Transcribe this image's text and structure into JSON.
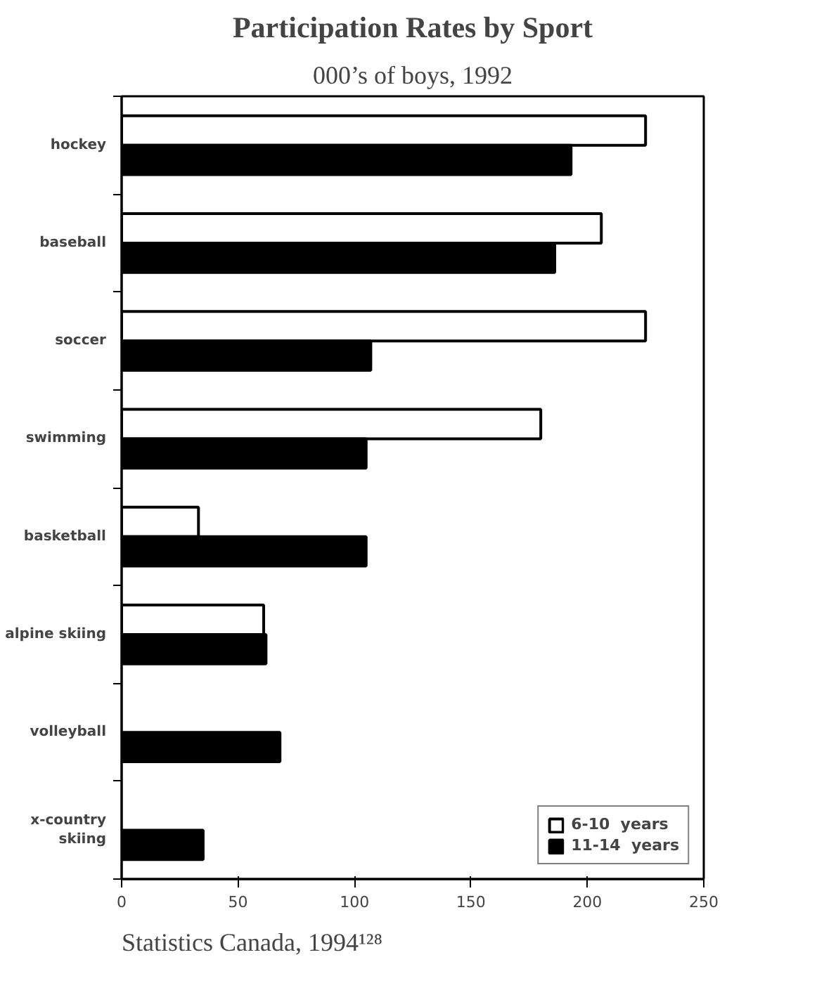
{
  "chart_data": {
    "type": "bar",
    "orientation": "horizontal",
    "title": "Participation Rates by Sport",
    "subtitle": "000’s of boys, 1992",
    "categories": [
      "hockey",
      "baseball",
      "soccer",
      "swimming",
      "basketball",
      "alpine skiing",
      "volleyball",
      "x-country skiing"
    ],
    "series": [
      {
        "name": "6-10  years",
        "color": "#ffffff",
        "values": [
          225,
          206,
          225,
          180,
          33,
          61,
          null,
          null
        ]
      },
      {
        "name": "11-14  years",
        "color": "#000000",
        "values": [
          193,
          186,
          107,
          105,
          105,
          62,
          68,
          35
        ]
      }
    ],
    "xlim": [
      0,
      250
    ],
    "xticks": [
      0,
      50,
      100,
      150,
      200,
      250
    ],
    "grid": false,
    "legend": "bottom right",
    "annotations": [
      "Statistics Canada, 1994¹²⁸"
    ]
  }
}
